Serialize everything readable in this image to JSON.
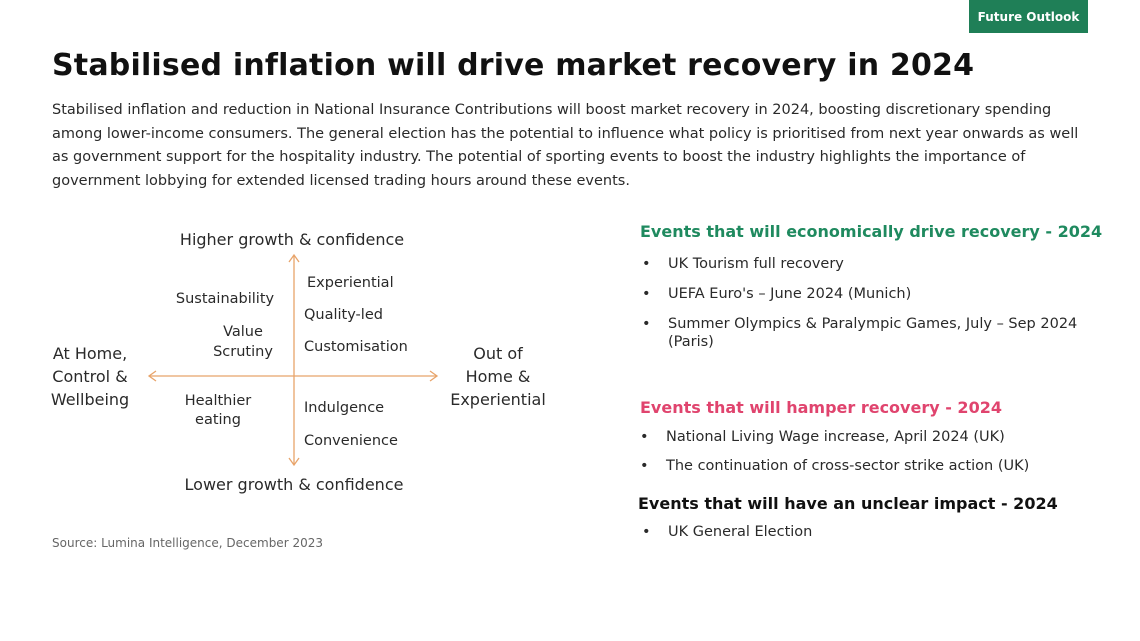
{
  "tag": "Future Outlook",
  "title": "Stabilised inflation will drive market recovery in 2024",
  "intro": "Stabilised inflation and reduction in National Insurance Contributions will boost market recovery in 2024, boosting discretionary spending among lower-income consumers.  The general election has the potential to influence what policy is prioritised from next year onwards as well as government support for  the hospitality industry.  The potential of sporting events to boost the industry highlights the importance of government lobbying for extended licensed trading hours around these events.",
  "quadrant": {
    "top_label": "Higher growth & confidence",
    "bottom_label": "Lower growth & confidence",
    "left_label": [
      "At Home,",
      "Control &",
      "Wellbeing"
    ],
    "right_label": [
      "Out of",
      "Home &",
      "Experiential"
    ],
    "top_left": [
      "Sustainability",
      "Value",
      "Scrutiny"
    ],
    "top_right": [
      "Experiential",
      "Quality-led",
      "Customisation"
    ],
    "bottom_left": [
      "Healthier",
      "eating"
    ],
    "bottom_right": [
      "Indulgence",
      "Convenience"
    ],
    "arrow_color": "#e8a46a"
  },
  "source": "Source:  Lumina  Intelligence, December  2023",
  "events": {
    "drive": {
      "heading": "Events that will economically drive recovery - 2024",
      "color": "#1f8a5f",
      "items": [
        "UK Tourism full recovery",
        "UEFA Euro's – June 2024 (Munich)",
        "Summer Olympics & Paralympic Games, July – Sep 2024 (Paris)"
      ]
    },
    "hamper": {
      "heading": "Events that will hamper recovery - 2024",
      "color": "#e0446e",
      "items": [
        "National Living Wage increase, April 2024 (UK)",
        "The continuation of cross-sector strike action (UK)"
      ]
    },
    "unclear": {
      "heading": "Events that will have an unclear impact - 2024",
      "items": [
        "UK General Election"
      ]
    }
  },
  "bullet": "•",
  "brand_color": "#1f7f57"
}
